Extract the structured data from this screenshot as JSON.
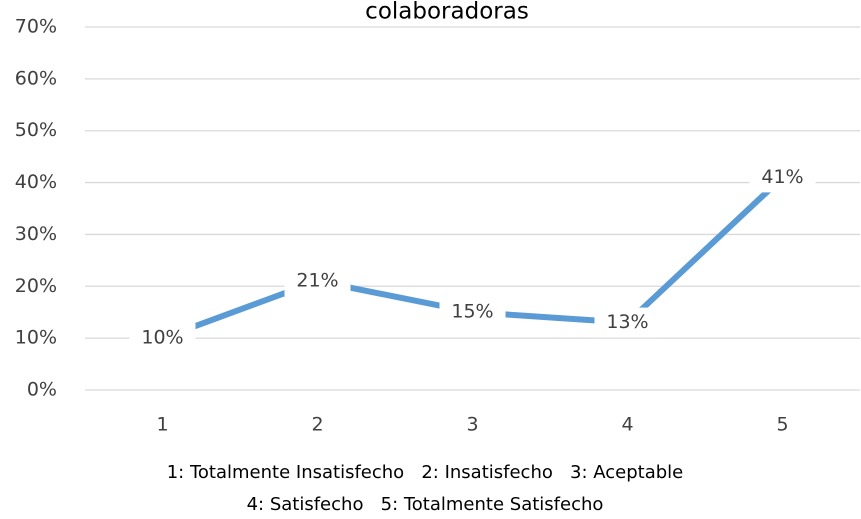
{
  "chart_data": {
    "type": "line",
    "title": "colaboradoras",
    "categories": [
      "1",
      "2",
      "3",
      "4",
      "5"
    ],
    "values": [
      10,
      21,
      15,
      13,
      41
    ],
    "value_labels": [
      "10%",
      "21%",
      "15%",
      "13%",
      "41%"
    ],
    "color": "#5b9bd5",
    "ylim": [
      0,
      70
    ],
    "yticks": [
      {
        "value": 0,
        "label": "0%"
      },
      {
        "value": 10,
        "label": "10%"
      },
      {
        "value": 20,
        "label": "20%"
      },
      {
        "value": 30,
        "label": "30%"
      },
      {
        "value": 40,
        "label": "40%"
      },
      {
        "value": 50,
        "label": "50%"
      },
      {
        "value": 60,
        "label": "60%"
      },
      {
        "value": 70,
        "label": "70%"
      }
    ],
    "grid": true,
    "notes": [
      "1: Totalmente Insatisfecho   2: Insatisfecho   3: Aceptable",
      "4: Satisfecho   5: Totalmente Satisfecho"
    ]
  }
}
